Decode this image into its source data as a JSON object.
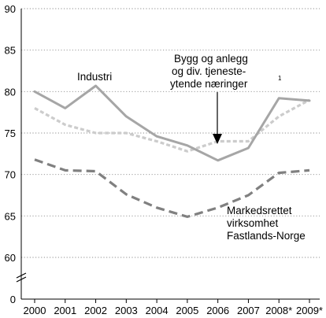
{
  "chart_data": {
    "type": "line",
    "x": [
      "2000",
      "2001",
      "2002",
      "2003",
      "2004",
      "2005",
      "2006",
      "2007",
      "2008*",
      "2009*"
    ],
    "ylim": [
      60,
      90
    ],
    "axis_floor_label": "0",
    "y_ticks": [
      "60",
      "65",
      "70",
      "75",
      "80",
      "85",
      "90"
    ],
    "grid": "horizontal dotted",
    "series": [
      {
        "id": "industri",
        "name": "Industri",
        "style": "solid",
        "color": "#a6a6a6",
        "values": [
          80.0,
          78.0,
          80.7,
          77.0,
          74.6,
          73.5,
          71.7,
          73.2,
          79.2,
          78.9
        ]
      },
      {
        "id": "bygg",
        "name": "Bygg og anlegg og div. tjenesteytende næringer",
        "style": "dotted",
        "color": "#cccccc",
        "values": [
          78.0,
          76.0,
          75.0,
          75.0,
          74.0,
          72.8,
          74.0,
          74.0,
          77.0,
          79.0
        ]
      },
      {
        "id": "marked",
        "name": "Markedsrettet virksomhet Fastlands-Norge",
        "style": "dashed",
        "color": "#808080",
        "values": [
          71.8,
          70.5,
          70.4,
          67.6,
          66.0,
          64.9,
          66.0,
          67.5,
          70.2,
          70.5
        ]
      }
    ],
    "annotations": {
      "industri": [
        "Industri"
      ],
      "bygg": [
        "Bygg og anlegg",
        "og div. tjeneste-",
        "ytende næringer"
      ],
      "bygg_footnote": "1",
      "marked": [
        "Markedsrettet",
        "virksomhet",
        "Fastlands-Norge"
      ]
    }
  }
}
